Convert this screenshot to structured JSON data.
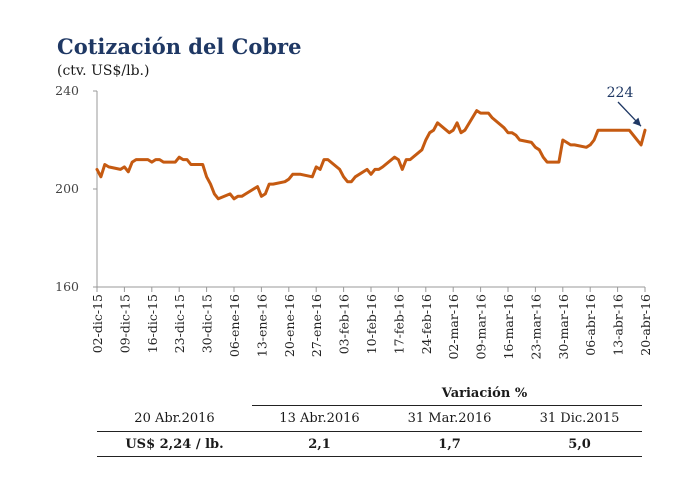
{
  "colors": {
    "line": "#c55a11",
    "title": "#1f3864",
    "axis": "#999999",
    "arrow": "#1f3864"
  },
  "title": "Cotización del Cobre",
  "subtitle": "(ctv. US$/lb.)",
  "chart_data": {
    "type": "line",
    "title": "Cotización del Cobre",
    "ylabel": "(ctv. US$/lb.)",
    "ylim": [
      160,
      240
    ],
    "yticks": [
      160,
      200,
      240
    ],
    "grid": false,
    "x_ticks": [
      "02-dic-15",
      "09-dic-15",
      "16-dic-15",
      "23-dic-15",
      "30-dic-15",
      "06-ene-16",
      "13-ene-16",
      "20-ene-16",
      "27-ene-16",
      "03-feb-16",
      "10-feb-16",
      "17-feb-16",
      "24-feb-16",
      "02-mar-16",
      "09-mar-16",
      "16-mar-16",
      "23-mar-16",
      "30-mar-16",
      "06-abr-16",
      "13-abr-16",
      "20-abr-16"
    ],
    "annotation": {
      "text": "224",
      "x": 140,
      "y": 224
    },
    "series": [
      {
        "x": [
          0,
          1,
          2,
          3,
          6,
          7,
          8,
          9,
          10,
          13,
          14,
          15,
          16,
          17,
          20,
          21,
          22,
          23,
          24,
          27,
          28,
          29,
          30,
          31,
          34,
          35,
          36,
          37,
          38,
          41,
          42,
          43,
          44,
          45,
          48,
          49,
          50,
          51,
          52,
          55,
          56,
          57,
          58,
          59,
          62,
          63,
          64,
          65,
          66,
          69,
          70,
          71,
          72,
          73,
          76,
          77,
          78,
          79,
          80,
          83,
          84,
          85,
          86,
          87,
          90,
          91,
          92,
          93,
          94,
          97,
          98,
          99,
          100,
          101,
          104,
          105,
          106,
          107,
          108,
          111,
          112,
          113,
          114,
          115,
          118,
          119,
          120,
          121,
          122,
          125,
          126,
          127,
          128,
          129,
          132,
          133,
          134,
          135,
          136,
          139,
          140
        ],
        "y": [
          208,
          205,
          210,
          209,
          208,
          209,
          207,
          211,
          212,
          212,
          211,
          212,
          212,
          211,
          211,
          213,
          212,
          212,
          210,
          210,
          205,
          202,
          198,
          196,
          198,
          196,
          197,
          197,
          198,
          201,
          197,
          198,
          202,
          202,
          203,
          204,
          206,
          206,
          206,
          205,
          209,
          208,
          212,
          212,
          208,
          205,
          203,
          203,
          205,
          208,
          206,
          208,
          208,
          209,
          213,
          212,
          208,
          212,
          212,
          216,
          220,
          223,
          224,
          227,
          223,
          224,
          227,
          223,
          224,
          232,
          231,
          231,
          231,
          229,
          225,
          223,
          223,
          222,
          220,
          219,
          217,
          216,
          213,
          211,
          211,
          220,
          219,
          218,
          218,
          217,
          218,
          220,
          224,
          224,
          224,
          224,
          224,
          224,
          224,
          218,
          224
        ]
      }
    ]
  },
  "table": {
    "header": "Variación %",
    "cols": [
      "20 Abr.2016",
      "13 Abr.2016",
      "31 Mar.2016",
      "31 Dic.2015"
    ],
    "values": [
      "US$ 2,24 / lb.",
      "2,1",
      "1,7",
      "5,0"
    ]
  }
}
